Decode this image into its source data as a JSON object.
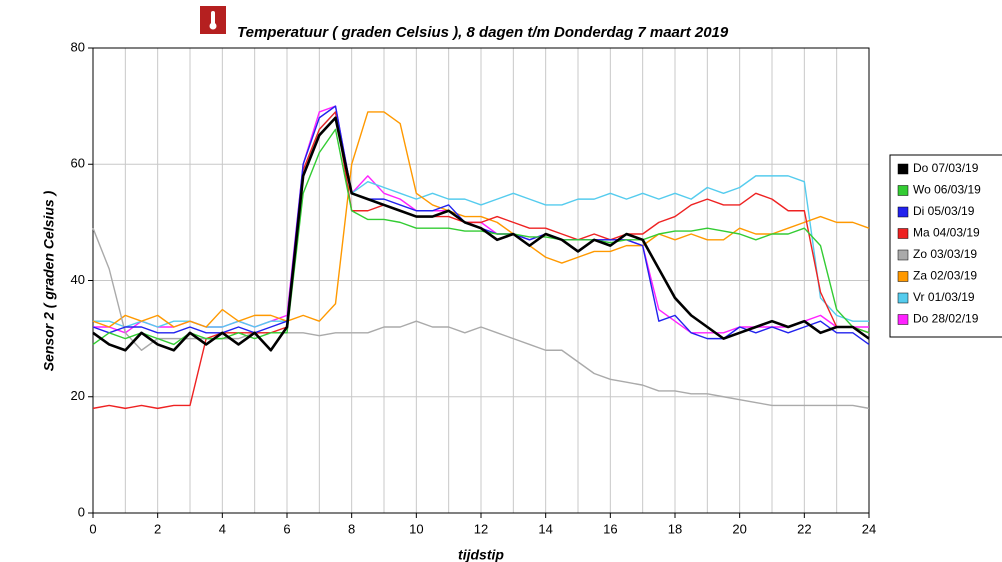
{
  "chart_data": {
    "type": "line",
    "title": "Temperatuur ( graden Celsius ), 8 dagen t/m Donderdag 7 maart 2019",
    "y_label": "Sensor 2 ( graden Celsius )",
    "x_label": "tijdstip",
    "xlim": [
      0,
      24
    ],
    "xticks": [
      0,
      2,
      4,
      6,
      8,
      10,
      12,
      14,
      16,
      18,
      20,
      22,
      24
    ],
    "ylim": [
      0,
      80
    ],
    "yticks": [
      0,
      20,
      40,
      60,
      80
    ],
    "grid": true,
    "legend": "right",
    "x": [
      0,
      0.5,
      1,
      1.5,
      2,
      2.5,
      3,
      3.5,
      4,
      4.5,
      5,
      5.5,
      6,
      6.5,
      7,
      7.5,
      8,
      8.5,
      9,
      9.5,
      10,
      10.5,
      11,
      11.5,
      12,
      12.5,
      13,
      13.5,
      14,
      14.5,
      15,
      15.5,
      16,
      16.5,
      17,
      17.5,
      18,
      18.5,
      19,
      19.5,
      20,
      20.5,
      21,
      21.5,
      22,
      22.5,
      23,
      23.5,
      24
    ],
    "series": [
      {
        "name": "Do 07/03/19",
        "color": "#000000",
        "values": [
          31,
          29,
          28,
          31,
          29,
          28,
          31,
          29,
          31,
          29,
          31,
          28,
          32,
          58,
          65,
          68,
          55,
          54,
          53,
          52,
          51,
          51,
          52,
          50,
          49,
          47,
          48,
          46,
          48,
          47,
          45,
          47,
          46,
          48,
          47,
          42,
          37,
          34,
          32,
          30,
          31,
          32,
          33,
          32,
          33,
          31,
          32,
          32,
          30
        ]
      },
      {
        "name": "Wo 06/03/19",
        "color": "#33cc33",
        "values": [
          29,
          31,
          30,
          31,
          30,
          29,
          31,
          30,
          30,
          31,
          30,
          31,
          31,
          55,
          62,
          66,
          52,
          50.5,
          50.5,
          50,
          49,
          49,
          49,
          48.5,
          48.5,
          48,
          48,
          47.5,
          47.5,
          47,
          47,
          47,
          46.5,
          47,
          47,
          48,
          48.5,
          48.5,
          49,
          48.5,
          48,
          47,
          48,
          48,
          49,
          46,
          35,
          32,
          31
        ]
      },
      {
        "name": "Di 05/03/19",
        "color": "#2222ee",
        "values": [
          32,
          31,
          32,
          32,
          31,
          31,
          32,
          31,
          31,
          32,
          31,
          32,
          33,
          60,
          68,
          70,
          55,
          54,
          54,
          53,
          52,
          52,
          53,
          50,
          49,
          48,
          48,
          47,
          48,
          47,
          47,
          47,
          47,
          47,
          46,
          33,
          34,
          31,
          30,
          30,
          32,
          31,
          32,
          31,
          32,
          33,
          31,
          31,
          29
        ]
      },
      {
        "name": "Ma 04/03/19",
        "color": "#ee2222",
        "values": [
          18,
          18.5,
          18,
          18.5,
          18,
          18.5,
          18.5,
          30,
          31,
          31,
          31,
          31,
          32,
          59,
          66,
          69,
          52,
          52,
          53,
          52,
          51,
          51,
          51,
          50,
          50,
          51,
          50,
          49,
          49,
          48,
          47,
          48,
          47,
          48,
          48,
          50,
          51,
          53,
          54,
          53,
          53,
          55,
          54,
          52,
          52,
          38,
          32,
          32,
          31
        ]
      },
      {
        "name": "Zo 03/03/19",
        "color": "#aaaaaa",
        "values": [
          49,
          42,
          31,
          28,
          30,
          30,
          30,
          30,
          30,
          30,
          31,
          31,
          31,
          31,
          30.5,
          31,
          31,
          31,
          32,
          32,
          33,
          32,
          32,
          31,
          32,
          31,
          30,
          29,
          28,
          28,
          26,
          24,
          23,
          22.5,
          22,
          21,
          21,
          20.5,
          20.5,
          20,
          19.5,
          19,
          18.5,
          18.5,
          18.5,
          18.5,
          18.5,
          18.5,
          18
        ]
      },
      {
        "name": "Za 02/03/19",
        "color": "#ff9900",
        "values": [
          33,
          32,
          34,
          33,
          34,
          32,
          33,
          32,
          35,
          33,
          34,
          34,
          33,
          34,
          33,
          36,
          60,
          69,
          69,
          67,
          55,
          53,
          52,
          51,
          51,
          50,
          48,
          46,
          44,
          43,
          44,
          45,
          45,
          46,
          46,
          48,
          47,
          48,
          47,
          47,
          49,
          48,
          48,
          49,
          50,
          51,
          50,
          50,
          49
        ]
      },
      {
        "name": "Vr 01/03/19",
        "color": "#55ccee",
        "values": [
          33,
          33,
          32,
          33,
          32,
          33,
          33,
          32,
          32,
          33,
          32,
          33,
          33,
          58,
          66,
          69,
          55,
          57,
          56,
          55,
          54,
          55,
          54,
          54,
          53,
          54,
          55,
          54,
          53,
          53,
          54,
          54,
          55,
          54,
          55,
          54,
          55,
          54,
          56,
          55,
          56,
          58,
          58,
          58,
          57,
          37,
          34,
          33,
          33
        ]
      },
      {
        "name": "Do 28/02/19",
        "color": "#ff22ff",
        "values": [
          32,
          32,
          31,
          33,
          32,
          32,
          33,
          32,
          32,
          33,
          32,
          33,
          34,
          60,
          69,
          70,
          55,
          58,
          55,
          54,
          52,
          52,
          52,
          50,
          50,
          48,
          48,
          47,
          48,
          47,
          47,
          47,
          47,
          47,
          46,
          35,
          33,
          31,
          31,
          31,
          32,
          32,
          32,
          32,
          33,
          34,
          32,
          32,
          32
        ]
      }
    ]
  }
}
